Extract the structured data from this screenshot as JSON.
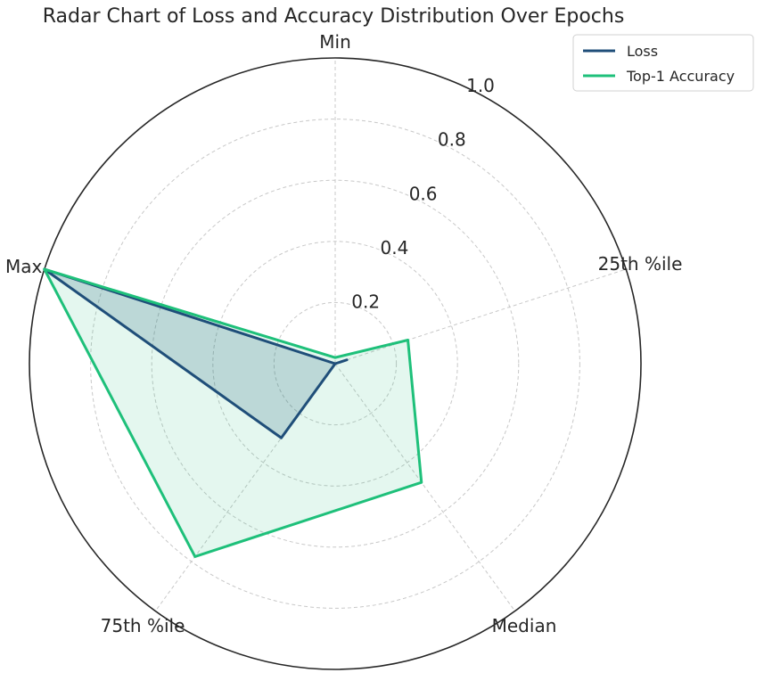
{
  "chart_data": {
    "type": "radar",
    "title": "Radar Chart of Loss and Accuracy Distribution Over Epochs",
    "axes": [
      "Min",
      "25th %ile",
      "Median",
      "75th %ile",
      "Max"
    ],
    "radial_ticks": [
      "0.2",
      "0.4",
      "0.6",
      "0.8",
      "1.0"
    ],
    "radial_tick_values": [
      0.2,
      0.4,
      0.6,
      0.8,
      1.0
    ],
    "rlim": [
      0,
      1.0
    ],
    "grid": true,
    "legend_position": "top-right",
    "series": [
      {
        "name": "Loss",
        "values": [
          0.0,
          0.04,
          0.0,
          0.3,
          1.0
        ],
        "color": "#1f4e79",
        "fill_opacity": 0.2
      },
      {
        "name": "Top-1 Accuracy",
        "values": [
          0.02,
          0.25,
          0.48,
          0.78,
          1.0
        ],
        "color": "#1ec07a",
        "fill_opacity": 0.12
      }
    ]
  }
}
